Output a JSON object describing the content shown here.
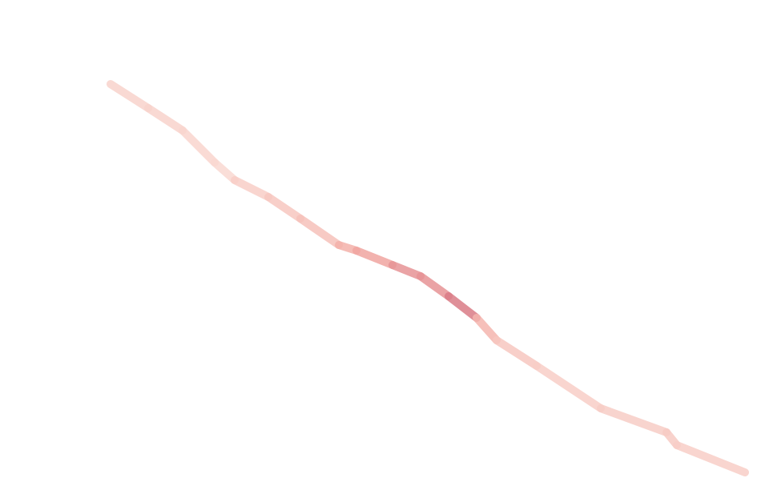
{
  "map": {
    "background_color": "#ffffff",
    "route": {
      "style": "heat-gradient",
      "colors": {
        "low": "#fbe3dc",
        "mid": "#f2aaa3",
        "high": "#d97b86"
      },
      "segments": [
        {
          "intensity": 0.15
        },
        {
          "intensity": 0.12
        },
        {
          "intensity": 0.1
        },
        {
          "intensity": 0.18
        },
        {
          "intensity": 0.25
        },
        {
          "intensity": 0.3
        },
        {
          "intensity": 0.45
        },
        {
          "intensity": 0.55
        },
        {
          "intensity": 0.75
        },
        {
          "intensity": 1.0
        },
        {
          "intensity": 0.4
        },
        {
          "intensity": 0.25
        },
        {
          "intensity": 0.18
        },
        {
          "intensity": 0.2
        },
        {
          "intensity": 0.22
        },
        {
          "intensity": 0.18
        }
      ]
    }
  }
}
